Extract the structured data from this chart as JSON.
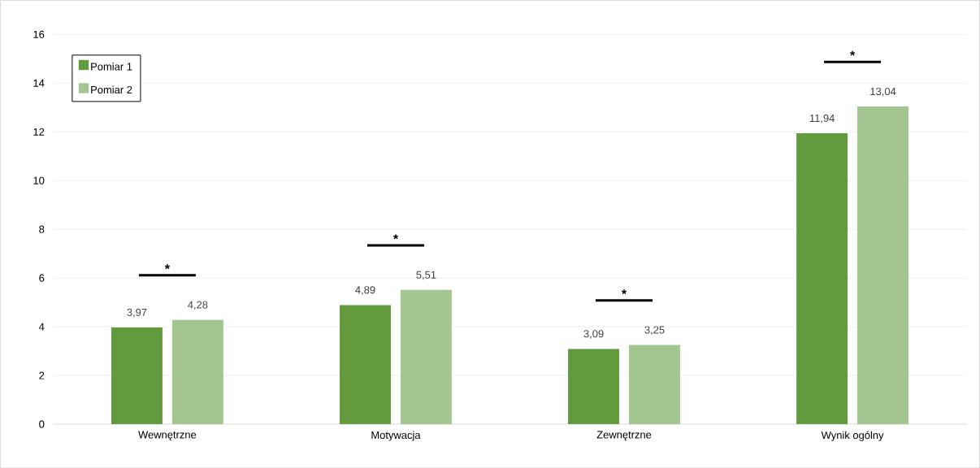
{
  "chart_data": {
    "type": "bar",
    "categories": [
      "Wewnętrzne",
      "Motywacja",
      "Zewnętrzne",
      "Wynik ogólny"
    ],
    "series": [
      {
        "name": "Pomiar 1",
        "color": "#629a3e",
        "values": [
          3.97,
          4.89,
          3.09,
          11.94
        ],
        "value_labels": [
          "3,97",
          "4,89",
          "3,09",
          "11,94"
        ]
      },
      {
        "name": "Pomiar 2",
        "color": "#a3c58f",
        "values": [
          4.28,
          5.51,
          3.25,
          13.04
        ],
        "value_labels": [
          "4,28",
          "5,51",
          "3,25",
          "13,04"
        ]
      }
    ],
    "ylim": [
      0,
      16
    ],
    "yticks": [
      0,
      2,
      4,
      6,
      8,
      10,
      12,
      14,
      16
    ],
    "grid": "y",
    "legend": "top left",
    "annotations": [
      "*",
      "*",
      "*",
      "*"
    ]
  }
}
